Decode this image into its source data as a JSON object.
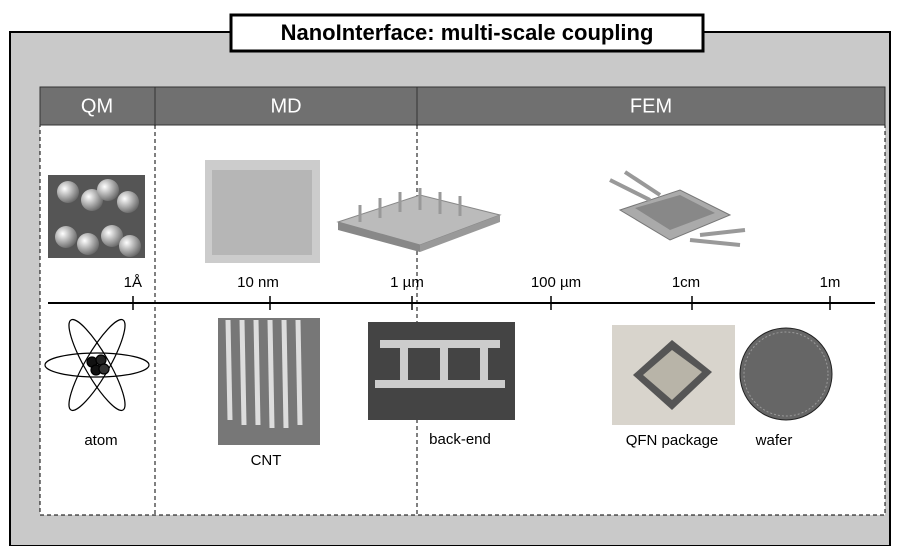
{
  "header": {
    "title": "NanoInterface: multi-scale coupling"
  },
  "bands": [
    "QM",
    "MD",
    "FEM"
  ],
  "scale_labels": [
    "1Å",
    "10 nm",
    "1 µm",
    "100 µm",
    "1cm",
    "1m"
  ],
  "captions": [
    "atom",
    "CNT",
    "back-end",
    "QFN package",
    "wafer"
  ]
}
